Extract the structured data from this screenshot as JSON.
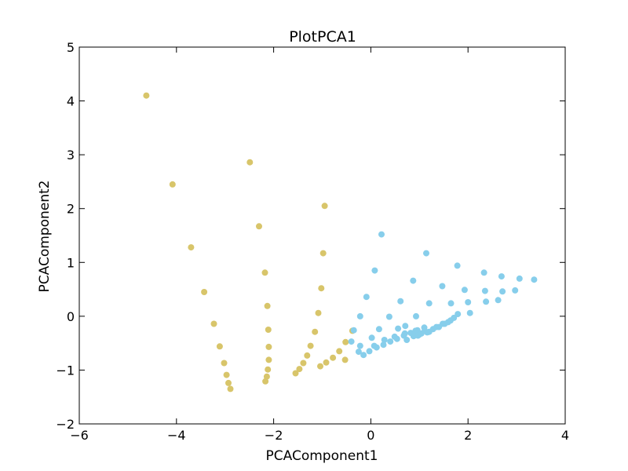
{
  "chart_data": {
    "type": "scatter",
    "title": "PlotPCA1",
    "xlabel": "PCAComponent1",
    "ylabel": "PCAComponent2",
    "xlim": [
      -6,
      4
    ],
    "ylim": [
      -2,
      5
    ],
    "xticks": [
      -6,
      -4,
      -2,
      0,
      2,
      4
    ],
    "yticks": [
      -2,
      -1,
      0,
      1,
      2,
      3,
      4,
      5
    ],
    "grid": false,
    "colors": {
      "series1": "#d8c56a",
      "series2": "#87ceeb"
    },
    "series": [
      {
        "color_key": "series1",
        "points": [
          [
            -4.62,
            4.1
          ],
          [
            -4.08,
            2.45
          ],
          [
            -3.7,
            1.28
          ],
          [
            -3.43,
            0.45
          ],
          [
            -3.23,
            -0.14
          ],
          [
            -3.11,
            -0.56
          ],
          [
            -3.02,
            -0.87
          ],
          [
            -2.97,
            -1.09
          ],
          [
            -2.93,
            -1.24
          ],
          [
            -2.89,
            -1.35
          ],
          [
            -2.49,
            2.86
          ],
          [
            -2.3,
            1.67
          ],
          [
            -2.18,
            0.81
          ],
          [
            -2.13,
            0.19
          ],
          [
            -2.11,
            -0.25
          ],
          [
            -2.1,
            -0.57
          ],
          [
            -2.1,
            -0.81
          ],
          [
            -2.12,
            -0.99
          ],
          [
            -2.14,
            -1.12
          ],
          [
            -2.17,
            -1.21
          ],
          [
            -0.95,
            2.05
          ],
          [
            -0.98,
            1.17
          ],
          [
            -1.02,
            0.52
          ],
          [
            -1.08,
            0.06
          ],
          [
            -1.15,
            -0.29
          ],
          [
            -1.24,
            -0.55
          ],
          [
            -1.31,
            -0.73
          ],
          [
            -1.39,
            -0.87
          ],
          [
            -1.47,
            -0.98
          ],
          [
            -1.55,
            -1.06
          ],
          [
            -0.38,
            -0.27
          ],
          [
            -0.52,
            -0.48
          ],
          [
            -0.65,
            -0.65
          ],
          [
            -0.78,
            -0.77
          ],
          [
            -0.92,
            -0.86
          ],
          [
            -1.04,
            -0.93
          ],
          [
            -0.53,
            -0.81
          ]
        ]
      },
      {
        "color_key": "series2",
        "points": [
          [
            0.22,
            1.52
          ],
          [
            0.08,
            0.85
          ],
          [
            -0.09,
            0.36
          ],
          [
            -0.22,
            0.0
          ],
          [
            -0.35,
            -0.26
          ],
          [
            -0.4,
            -0.47
          ],
          [
            -0.22,
            -0.55
          ],
          [
            -0.25,
            -0.66
          ],
          [
            -0.15,
            -0.72
          ],
          [
            -0.03,
            -0.65
          ],
          [
            0.12,
            -0.58
          ],
          [
            0.26,
            -0.53
          ],
          [
            0.4,
            -0.47
          ],
          [
            0.54,
            -0.42
          ],
          [
            0.68,
            -0.36
          ],
          [
            0.82,
            -0.31
          ],
          [
            0.96,
            -0.26
          ],
          [
            1.1,
            -0.21
          ],
          [
            1.14,
            1.17
          ],
          [
            0.87,
            0.66
          ],
          [
            0.61,
            0.28
          ],
          [
            0.38,
            -0.01
          ],
          [
            0.17,
            -0.24
          ],
          [
            0.02,
            -0.4
          ],
          [
            0.07,
            -0.55
          ],
          [
            0.28,
            -0.44
          ],
          [
            0.49,
            -0.38
          ],
          [
            0.7,
            -0.32
          ],
          [
            0.92,
            -0.27
          ],
          [
            1.78,
            0.94
          ],
          [
            1.47,
            0.56
          ],
          [
            1.2,
            0.24
          ],
          [
            0.93,
            0.0
          ],
          [
            0.71,
            -0.18
          ],
          [
            0.56,
            -0.23
          ],
          [
            0.74,
            -0.44
          ],
          [
            0.88,
            -0.37
          ],
          [
            1.0,
            -0.34
          ],
          [
            1.16,
            -0.3
          ],
          [
            1.28,
            -0.24
          ],
          [
            1.4,
            -0.2
          ],
          [
            1.52,
            -0.14
          ],
          [
            1.59,
            -0.11
          ],
          [
            1.64,
            -0.08
          ],
          [
            1.71,
            -0.03
          ],
          [
            1.79,
            0.04
          ],
          [
            1.65,
            0.24
          ],
          [
            1.93,
            0.49
          ],
          [
            2.33,
            0.81
          ],
          [
            2.0,
            0.26
          ],
          [
            2.04,
            0.06
          ],
          [
            2.37,
            0.27
          ],
          [
            2.62,
            0.3
          ],
          [
            2.35,
            0.47
          ],
          [
            2.69,
            0.74
          ],
          [
            2.71,
            0.46
          ],
          [
            3.06,
            0.7
          ],
          [
            3.36,
            0.68
          ],
          [
            2.97,
            0.48
          ],
          [
            0.97,
            -0.36
          ],
          [
            1.04,
            -0.32
          ],
          [
            1.2,
            -0.29
          ],
          [
            1.11,
            -0.27
          ],
          [
            1.35,
            -0.2
          ],
          [
            1.48,
            -0.14
          ]
        ]
      }
    ]
  }
}
